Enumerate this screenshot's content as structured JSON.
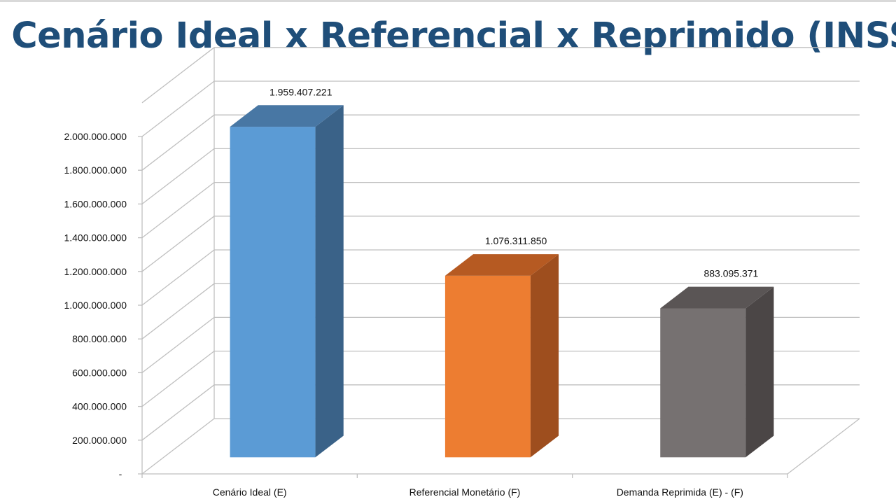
{
  "chart_data": {
    "type": "bar",
    "style": "3d-column",
    "title": "Cenário Ideal x Referencial x Reprimido (INSS)",
    "categories": [
      "Cenário Ideal (E)",
      "Referencial Monetário (F)",
      "Demanda Reprimida (E) - (F)"
    ],
    "values": [
      1959407221,
      1076311850,
      883095371
    ],
    "data_labels": [
      "1.959.407.221",
      "1.076.311.850",
      "883.095.371"
    ],
    "colors": [
      "#5b9bd5",
      "#ed7d31",
      "#767171"
    ],
    "ylim": [
      0,
      2200000000
    ],
    "y_ticks": [
      0,
      200000000,
      400000000,
      600000000,
      800000000,
      1000000000,
      1200000000,
      1400000000,
      1600000000,
      1800000000,
      2000000000
    ],
    "y_tick_labels": [
      "-",
      "200.000.000",
      "400.000.000",
      "600.000.000",
      "800.000.000",
      "1.000.000.000",
      "1.200.000.000",
      "1.400.000.000",
      "1.600.000.000",
      "1.800.000.000",
      "2.000.000.000"
    ],
    "grid": true,
    "legend": "none"
  }
}
